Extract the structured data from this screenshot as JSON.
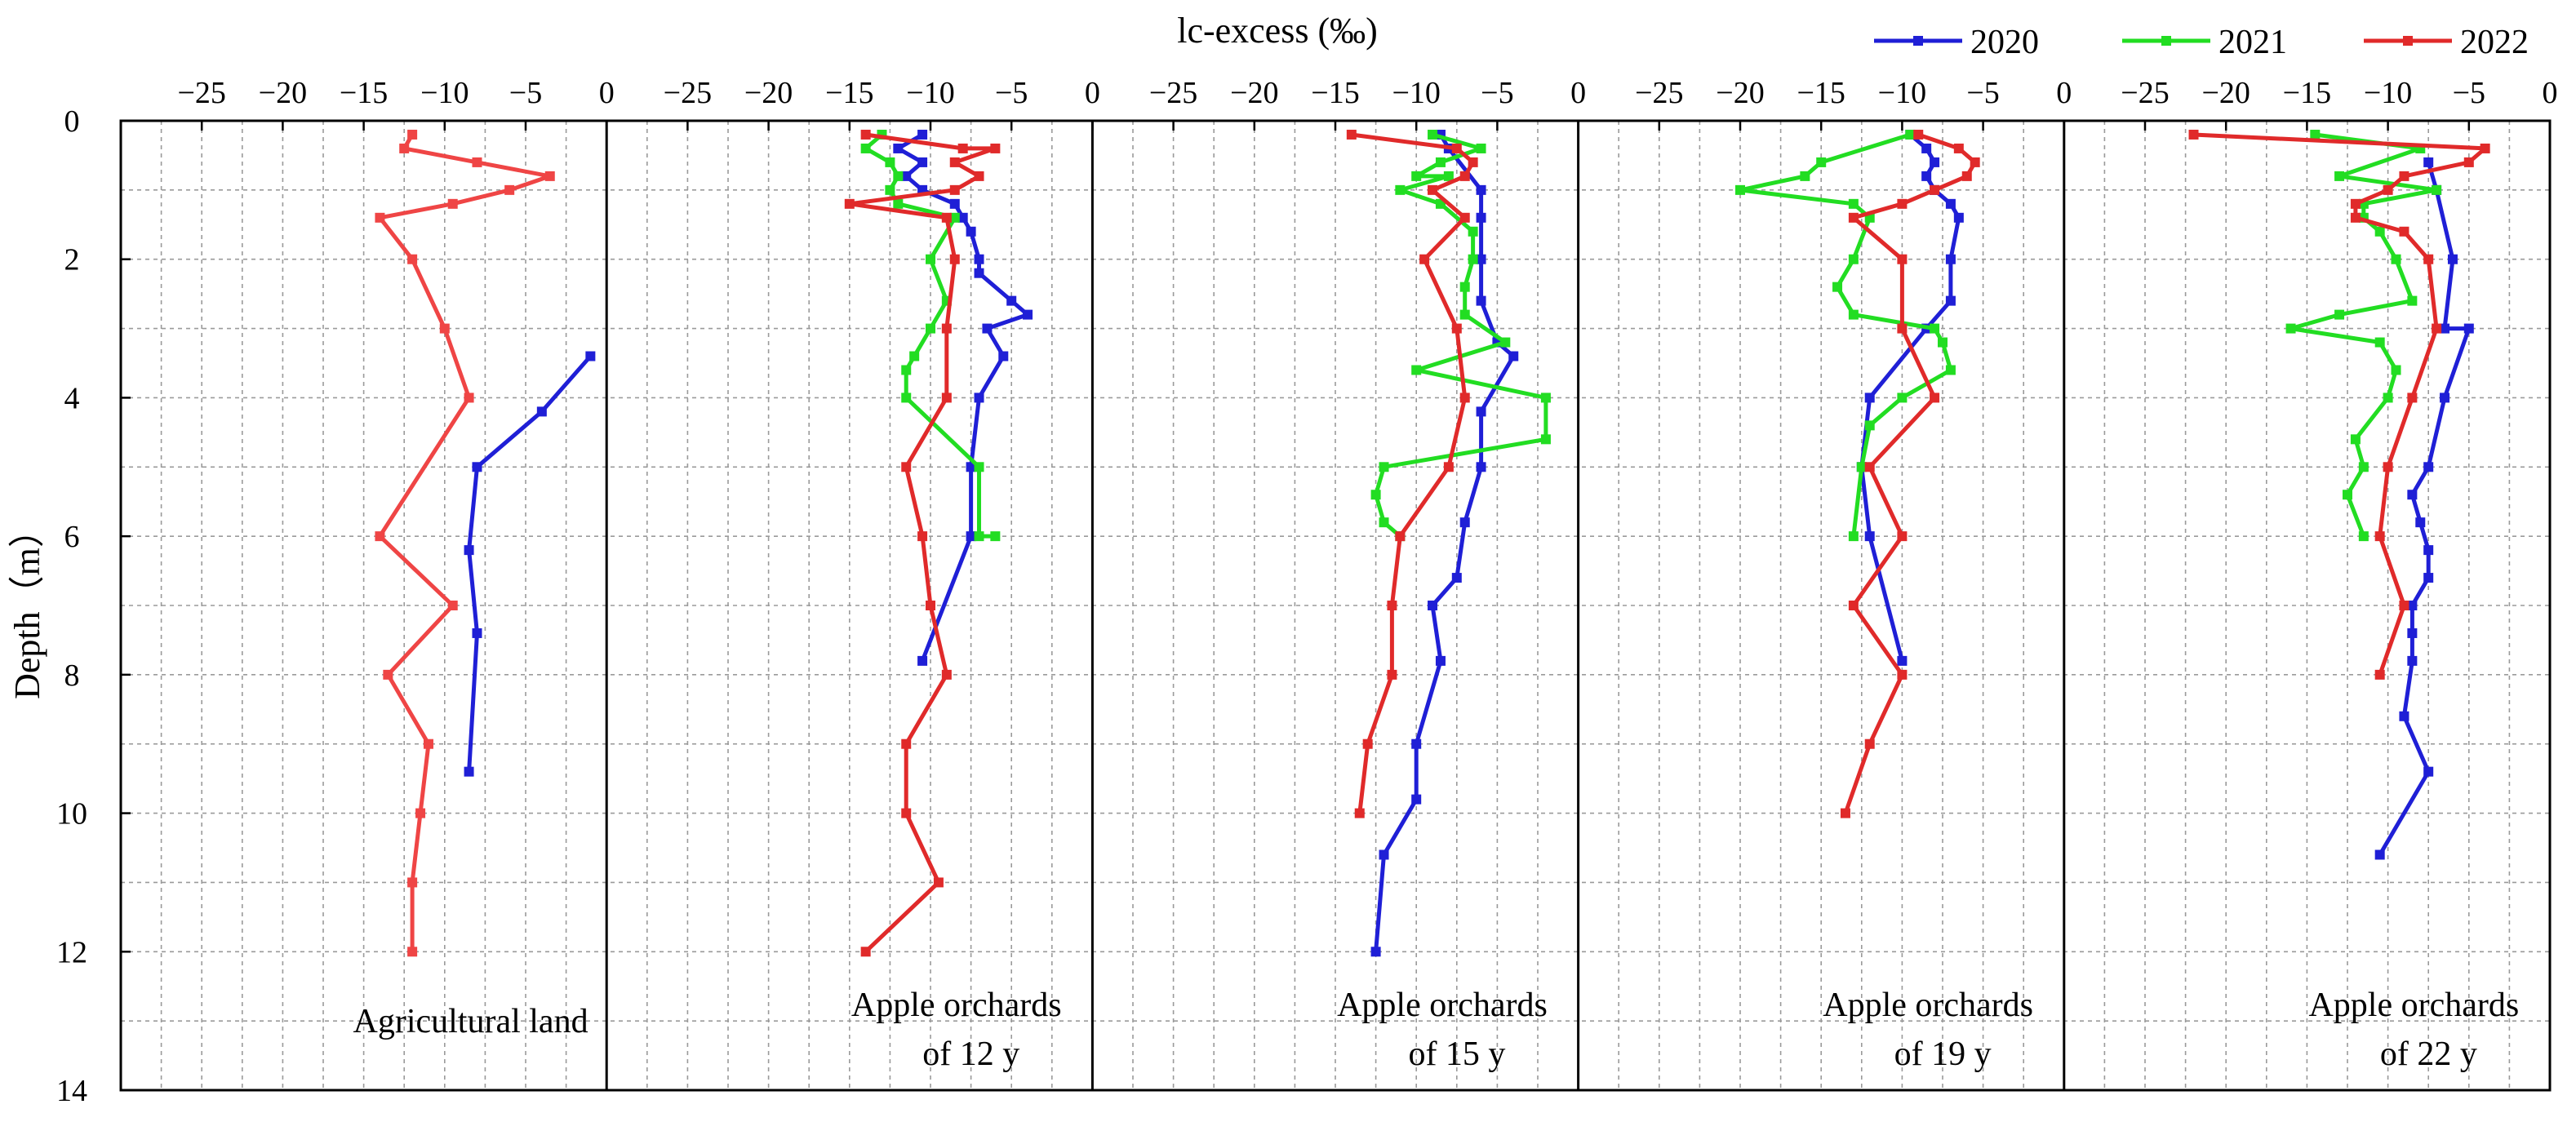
{
  "chart_data": {
    "type": "line",
    "x_axis_title": "lc-excess (‰)",
    "y_axis_title": "Depth（m）",
    "xlim": [
      -30,
      0
    ],
    "ylim": [
      0,
      14
    ],
    "x_ticks": [
      -25,
      -20,
      -15,
      -10,
      -5,
      0
    ],
    "x_tick_labels": [
      "−25",
      "−20",
      "−15",
      "−10",
      "−5",
      "0"
    ],
    "y_ticks": [
      0,
      2,
      4,
      6,
      8,
      10,
      12,
      14
    ],
    "y_tick_labels": [
      "0",
      "2",
      "4",
      "6",
      "8",
      "10",
      "12",
      "14"
    ],
    "grid": true,
    "legend_position": "top-right",
    "series_styles": [
      {
        "name": "2020",
        "color": "#1f1fd6"
      },
      {
        "name": "2021",
        "color": "#22dd22"
      },
      {
        "name": "2022",
        "color": "#e02a2a"
      }
    ],
    "panels": [
      {
        "label_lines": [
          "Agricultural land"
        ],
        "series": [
          {
            "name": "2020",
            "points": [
              [
                -1,
                3.4
              ],
              [
                -4,
                4.2
              ],
              [
                -8,
                5.0
              ],
              [
                -8.5,
                6.2
              ],
              [
                -8,
                7.4
              ],
              [
                -8.5,
                9.4
              ]
            ]
          },
          {
            "name": "2022",
            "color": "#ef4545",
            "points": [
              [
                -12,
                0.2
              ],
              [
                -12.5,
                0.4
              ],
              [
                -8,
                0.6
              ],
              [
                -3.5,
                0.8
              ],
              [
                -6,
                1.0
              ],
              [
                -9.5,
                1.2
              ],
              [
                -14,
                1.4
              ],
              [
                -12,
                2.0
              ],
              [
                -10,
                3.0
              ],
              [
                -8.5,
                4.0
              ],
              [
                -14,
                6.0
              ],
              [
                -9.5,
                7.0
              ],
              [
                -13.5,
                8.0
              ],
              [
                -11,
                9.0
              ],
              [
                -11.5,
                10.0
              ],
              [
                -12,
                11.0
              ],
              [
                -12,
                12.0
              ]
            ]
          }
        ]
      },
      {
        "label_lines": [
          "Apple orchards",
          "of 12 y"
        ],
        "series": [
          {
            "name": "2020",
            "points": [
              [
                -10.5,
                0.2
              ],
              [
                -12,
                0.4
              ],
              [
                -10.5,
                0.6
              ],
              [
                -11.5,
                0.8
              ],
              [
                -10.5,
                1.0
              ],
              [
                -8.5,
                1.2
              ],
              [
                -8,
                1.4
              ],
              [
                -7.5,
                1.6
              ],
              [
                -7,
                2.0
              ],
              [
                -7,
                2.2
              ],
              [
                -5,
                2.6
              ],
              [
                -4,
                2.8
              ],
              [
                -6.5,
                3.0
              ],
              [
                -5.5,
                3.4
              ],
              [
                -7,
                4.0
              ],
              [
                -7.5,
                5.0
              ],
              [
                -7.5,
                6.0
              ],
              [
                -10.5,
                7.8
              ]
            ]
          },
          {
            "name": "2021",
            "points": [
              [
                -13,
                0.2
              ],
              [
                -14,
                0.4
              ],
              [
                -12.5,
                0.6
              ],
              [
                -12,
                0.8
              ],
              [
                -12.5,
                1.0
              ],
              [
                -12,
                1.2
              ],
              [
                -8.5,
                1.4
              ],
              [
                -10,
                2.0
              ],
              [
                -9,
                2.6
              ],
              [
                -10,
                3.0
              ],
              [
                -11,
                3.4
              ],
              [
                -11.5,
                3.6
              ],
              [
                -11.5,
                4.0
              ],
              [
                -7,
                5.0
              ],
              [
                -7,
                6.0
              ],
              [
                -6,
                6.0
              ]
            ]
          },
          {
            "name": "2022",
            "points": [
              [
                -14,
                0.2
              ],
              [
                -8,
                0.4
              ],
              [
                -6,
                0.4
              ],
              [
                -8.5,
                0.6
              ],
              [
                -7,
                0.8
              ],
              [
                -8.5,
                1.0
              ],
              [
                -15,
                1.2
              ],
              [
                -9,
                1.4
              ],
              [
                -8.5,
                2.0
              ],
              [
                -9,
                3.0
              ],
              [
                -9,
                4.0
              ],
              [
                -11.5,
                5.0
              ],
              [
                -10.5,
                6.0
              ],
              [
                -10,
                7.0
              ],
              [
                -9,
                8.0
              ],
              [
                -11.5,
                9.0
              ],
              [
                -11.5,
                10.0
              ],
              [
                -9.5,
                11.0
              ],
              [
                -14,
                12.0
              ]
            ]
          }
        ]
      },
      {
        "label_lines": [
          "Apple orchards",
          "of 15 y"
        ],
        "series": [
          {
            "name": "2020",
            "points": [
              [
                -8.5,
                0.2
              ],
              [
                -8,
                0.4
              ],
              [
                -6,
                1.0
              ],
              [
                -6,
                1.4
              ],
              [
                -6,
                2.0
              ],
              [
                -6,
                2.6
              ],
              [
                -5,
                3.2
              ],
              [
                -4,
                3.4
              ],
              [
                -6,
                4.2
              ],
              [
                -6,
                5.0
              ],
              [
                -7,
                5.8
              ],
              [
                -7.5,
                6.6
              ],
              [
                -9,
                7.0
              ],
              [
                -8.5,
                7.8
              ],
              [
                -10,
                9.0
              ],
              [
                -10,
                9.8
              ],
              [
                -12,
                10.6
              ],
              [
                -12.5,
                12.0
              ]
            ]
          },
          {
            "name": "2021",
            "points": [
              [
                -9,
                0.2
              ],
              [
                -6,
                0.4
              ],
              [
                -8.5,
                0.6
              ],
              [
                -10,
                0.8
              ],
              [
                -8,
                0.8
              ],
              [
                -11,
                1.0
              ],
              [
                -8.5,
                1.2
              ],
              [
                -6.5,
                1.6
              ],
              [
                -6.5,
                2.0
              ],
              [
                -7,
                2.4
              ],
              [
                -7,
                2.8
              ],
              [
                -4.5,
                3.2
              ],
              [
                -10,
                3.6
              ],
              [
                -2,
                4.0
              ],
              [
                -2,
                4.6
              ],
              [
                -12,
                5.0
              ],
              [
                -12.5,
                5.4
              ],
              [
                -12,
                5.8
              ],
              [
                -11,
                6.0
              ]
            ]
          },
          {
            "name": "2022",
            "points": [
              [
                -14,
                0.2
              ],
              [
                -7.5,
                0.4
              ],
              [
                -6.5,
                0.6
              ],
              [
                -7,
                0.8
              ],
              [
                -9,
                1.0
              ],
              [
                -7,
                1.4
              ],
              [
                -9.5,
                2.0
              ],
              [
                -7.5,
                3.0
              ],
              [
                -7,
                4.0
              ],
              [
                -8,
                5.0
              ],
              [
                -11,
                6.0
              ],
              [
                -11.5,
                7.0
              ],
              [
                -11.5,
                8.0
              ],
              [
                -13,
                9.0
              ],
              [
                -13.5,
                10.0
              ]
            ]
          }
        ]
      },
      {
        "label_lines": [
          "Apple orchards",
          "of 19 y"
        ],
        "series": [
          {
            "name": "2020",
            "points": [
              [
                -9.5,
                0.2
              ],
              [
                -8.5,
                0.4
              ],
              [
                -8,
                0.6
              ],
              [
                -8.5,
                0.8
              ],
              [
                -8,
                1.0
              ],
              [
                -7,
                1.2
              ],
              [
                -6.5,
                1.4
              ],
              [
                -7,
                2.0
              ],
              [
                -7,
                2.6
              ],
              [
                -8.5,
                3.0
              ],
              [
                -12,
                4.0
              ],
              [
                -12.5,
                5.0
              ],
              [
                -12,
                6.0
              ],
              [
                -10,
                7.8
              ]
            ]
          },
          {
            "name": "2021",
            "points": [
              [
                -9.5,
                0.2
              ],
              [
                -15,
                0.6
              ],
              [
                -16,
                0.8
              ],
              [
                -20,
                1.0
              ],
              [
                -13,
                1.2
              ],
              [
                -12,
                1.4
              ],
              [
                -13,
                2.0
              ],
              [
                -14,
                2.4
              ],
              [
                -13,
                2.8
              ],
              [
                -8,
                3.0
              ],
              [
                -7.5,
                3.2
              ],
              [
                -7,
                3.6
              ],
              [
                -10,
                4.0
              ],
              [
                -12,
                4.4
              ],
              [
                -12.5,
                5.0
              ],
              [
                -13,
                6.0
              ]
            ]
          },
          {
            "name": "2022",
            "points": [
              [
                -9,
                0.2
              ],
              [
                -6.5,
                0.4
              ],
              [
                -5.5,
                0.6
              ],
              [
                -6,
                0.8
              ],
              [
                -8,
                1.0
              ],
              [
                -10,
                1.2
              ],
              [
                -13,
                1.4
              ],
              [
                -10,
                2.0
              ],
              [
                -10,
                3.0
              ],
              [
                -8,
                4.0
              ],
              [
                -12,
                5.0
              ],
              [
                -10,
                6.0
              ],
              [
                -13,
                7.0
              ],
              [
                -10,
                8.0
              ],
              [
                -12,
                9.0
              ],
              [
                -13.5,
                10.0
              ]
            ]
          }
        ]
      },
      {
        "label_lines": [
          "Apple orchards",
          "of 22 y"
        ],
        "series": [
          {
            "name": "2020",
            "points": [
              [
                -7.5,
                0.6
              ],
              [
                -7,
                1.0
              ],
              [
                -6,
                2.0
              ],
              [
                -6.5,
                3.0
              ],
              [
                -5,
                3.0
              ],
              [
                -6.5,
                4.0
              ],
              [
                -7.5,
                5.0
              ],
              [
                -8.5,
                5.4
              ],
              [
                -8,
                5.8
              ],
              [
                -7.5,
                6.2
              ],
              [
                -7.5,
                6.6
              ],
              [
                -8.5,
                7.0
              ],
              [
                -8.5,
                7.4
              ],
              [
                -8.5,
                7.8
              ],
              [
                -9,
                8.6
              ],
              [
                -7.5,
                9.4
              ],
              [
                -10.5,
                10.6
              ]
            ]
          },
          {
            "name": "2021",
            "points": [
              [
                -14.5,
                0.2
              ],
              [
                -8,
                0.4
              ],
              [
                -13,
                0.8
              ],
              [
                -7,
                1.0
              ],
              [
                -11.5,
                1.2
              ],
              [
                -11.5,
                1.4
              ],
              [
                -10.5,
                1.6
              ],
              [
                -9.5,
                2.0
              ],
              [
                -8.5,
                2.6
              ],
              [
                -13,
                2.8
              ],
              [
                -16,
                3.0
              ],
              [
                -10.5,
                3.2
              ],
              [
                -9.5,
                3.6
              ],
              [
                -10,
                4.0
              ],
              [
                -12,
                4.6
              ],
              [
                -11.5,
                5.0
              ],
              [
                -12.5,
                5.4
              ],
              [
                -11.5,
                6.0
              ]
            ]
          },
          {
            "name": "2022",
            "points": [
              [
                -22,
                0.2
              ],
              [
                -4,
                0.4
              ],
              [
                -5,
                0.6
              ],
              [
                -9,
                0.8
              ],
              [
                -10,
                1.0
              ],
              [
                -12,
                1.2
              ],
              [
                -12,
                1.4
              ],
              [
                -9,
                1.6
              ],
              [
                -7.5,
                2.0
              ],
              [
                -7,
                3.0
              ],
              [
                -8.5,
                4.0
              ],
              [
                -10,
                5.0
              ],
              [
                -10.5,
                6.0
              ],
              [
                -9,
                7.0
              ],
              [
                -10.5,
                8.0
              ]
            ]
          }
        ]
      }
    ]
  }
}
